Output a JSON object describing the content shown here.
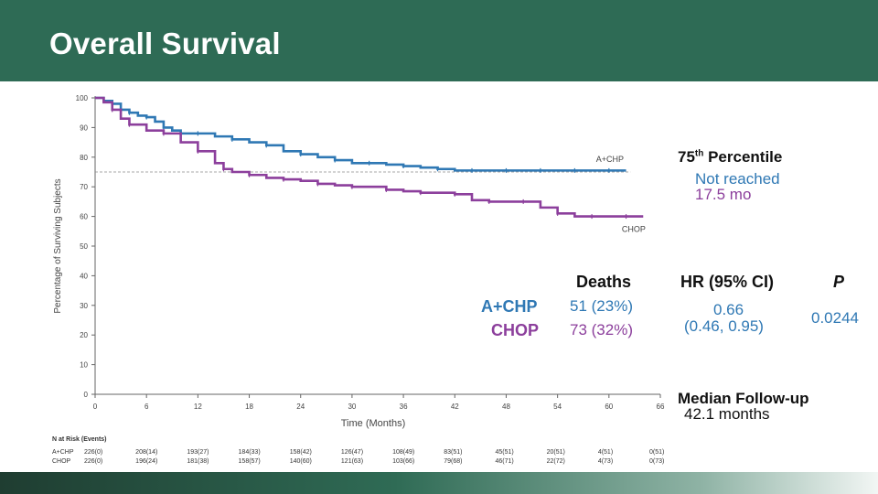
{
  "header": {
    "title": "Overall Survival"
  },
  "chart_data": {
    "type": "line",
    "title": "Overall Survival",
    "xlabel": "Time (Months)",
    "ylabel": "Percentage of Surviving Subjects",
    "xlim": [
      0,
      66
    ],
    "ylim": [
      0,
      100
    ],
    "xticks": [
      0,
      6,
      12,
      18,
      24,
      30,
      36,
      42,
      48,
      54,
      60,
      66
    ],
    "yticks": [
      0,
      10,
      20,
      30,
      40,
      50,
      60,
      70,
      80,
      90,
      100
    ],
    "reference_line": {
      "y": 75,
      "style": "dashed"
    },
    "series": [
      {
        "name": "A+CHP",
        "color": "#2f78b4",
        "x": [
          0,
          1,
          2,
          3,
          4,
          5,
          6,
          7,
          8,
          9,
          10,
          11,
          12,
          14,
          16,
          18,
          20,
          22,
          24,
          26,
          28,
          30,
          32,
          34,
          36,
          38,
          40,
          42,
          44,
          46,
          48,
          50,
          52,
          54,
          56,
          58,
          60,
          62
        ],
        "y": [
          100,
          99,
          98,
          96,
          95,
          94,
          93.5,
          92,
          90,
          89,
          88,
          88,
          88,
          87,
          86,
          85,
          84,
          82,
          81,
          80,
          79,
          78,
          78,
          77.5,
          77,
          76.5,
          76,
          75.5,
          75.5,
          75.5,
          75.5,
          75.5,
          75.5,
          75.5,
          75.5,
          75.5,
          75.5,
          75.5
        ]
      },
      {
        "name": "CHOP",
        "color": "#8c3f9c",
        "x": [
          0,
          1,
          2,
          3,
          4,
          6,
          8,
          10,
          12,
          14,
          15,
          16,
          18,
          20,
          22,
          24,
          26,
          28,
          30,
          32,
          34,
          36,
          38,
          40,
          42,
          44,
          46,
          48,
          50,
          52,
          54,
          56,
          58,
          60,
          62,
          64
        ],
        "y": [
          100,
          98.5,
          96,
          93,
          91,
          89,
          88,
          85,
          82,
          78,
          76,
          75,
          74,
          73,
          72.5,
          72,
          71,
          70.5,
          70,
          70,
          69,
          68.5,
          68,
          68,
          67.5,
          65.5,
          65,
          65,
          65,
          63,
          61,
          60,
          60,
          60,
          60,
          60
        ]
      }
    ],
    "curve_labels": [
      "A+CHP",
      "CHOP"
    ],
    "percentile_75": {
      "title_prefix": "75",
      "title_sup": "th",
      "title_suffix": " Percentile",
      "a_chp": "Not reached",
      "chop": "17.5 mo"
    },
    "stats_table": {
      "deaths_header": "Deaths",
      "hr_header": "HR (95% CI)",
      "p_header": "P",
      "rows": [
        {
          "name": "A+CHP",
          "deaths": "51 (23%)"
        },
        {
          "name": "CHOP",
          "deaths": "73 (32%)"
        }
      ],
      "hr_value": "0.66",
      "hr_ci": "(0.46, 0.95)",
      "p_value": "0.0244"
    },
    "median_followup": {
      "label": "Median Follow-up",
      "value": "42.1 months"
    },
    "at_risk": {
      "title": "N at Risk (Events)",
      "rows": [
        {
          "name": "A+CHP",
          "values": [
            "226(0)",
            "208(14)",
            "193(27)",
            "184(33)",
            "158(42)",
            "126(47)",
            "108(49)",
            "83(51)",
            "45(51)",
            "20(51)",
            "4(51)",
            "0(51)"
          ]
        },
        {
          "name": "CHOP",
          "values": [
            "226(0)",
            "196(24)",
            "181(38)",
            "158(57)",
            "140(60)",
            "121(63)",
            "103(66)",
            "79(68)",
            "46(71)",
            "22(72)",
            "4(73)",
            "0(73)"
          ]
        }
      ]
    }
  }
}
